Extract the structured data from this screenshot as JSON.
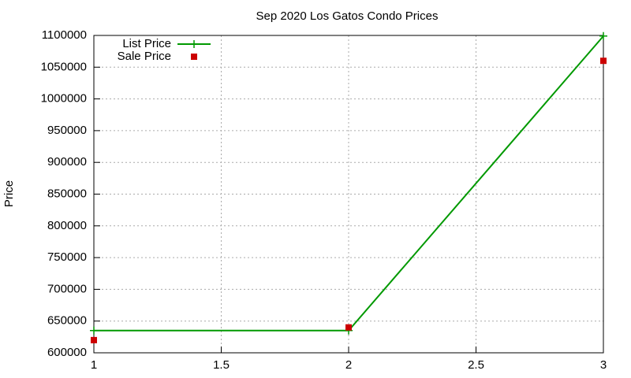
{
  "chart_data": {
    "type": "line",
    "title": "Sep 2020 Los Gatos Condo Prices",
    "y_label": "Price",
    "x": [
      1,
      2,
      3
    ],
    "series": [
      {
        "name": "List Price",
        "color": "#009900",
        "mode": "lines+markers",
        "values": [
          635000,
          635000,
          1099000
        ]
      },
      {
        "name": "Sale Price",
        "color": "#cc0000",
        "mode": "markers",
        "values": [
          620000,
          640000,
          1060000
        ]
      }
    ],
    "xlim": [
      1,
      3
    ],
    "xticks": [
      1,
      1.5,
      2,
      2.5,
      3
    ],
    "ylim": [
      600000,
      1100000
    ],
    "yticks": [
      600000,
      650000,
      700000,
      750000,
      800000,
      850000,
      900000,
      950000,
      1000000,
      1050000,
      1100000
    ],
    "grid": true,
    "legend": "top-left"
  }
}
